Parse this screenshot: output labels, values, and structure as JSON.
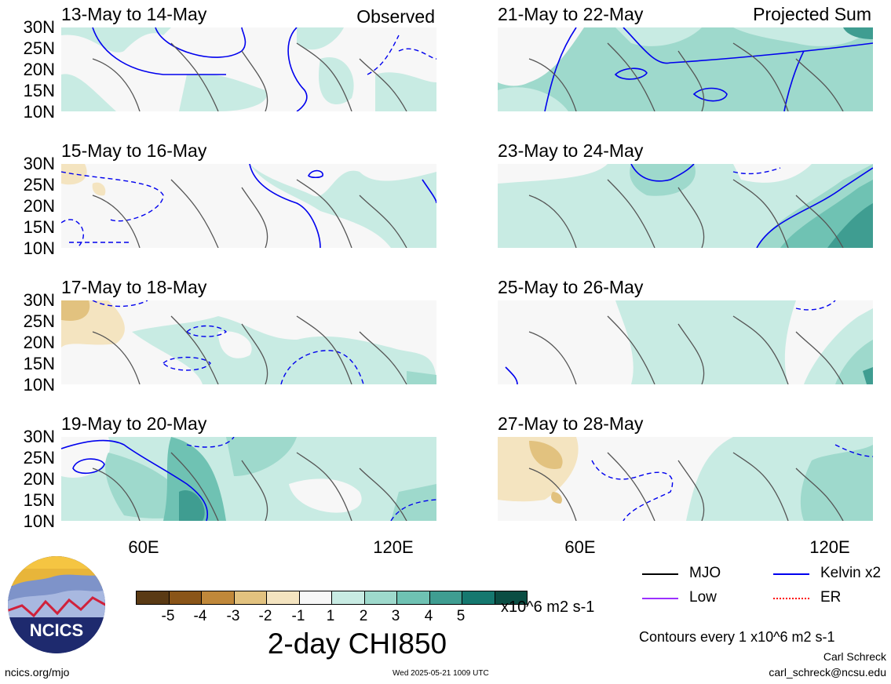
{
  "panels": [
    {
      "title": "13-May to 14-May",
      "tag": "Observed"
    },
    {
      "title": "15-May to 16-May",
      "tag": ""
    },
    {
      "title": "17-May to 18-May",
      "tag": ""
    },
    {
      "title": "19-May to 20-May",
      "tag": ""
    },
    {
      "title": "21-May to 22-May",
      "tag": "Projected Sum"
    },
    {
      "title": "23-May to 24-May",
      "tag": ""
    },
    {
      "title": "25-May to 26-May",
      "tag": ""
    },
    {
      "title": "27-May to 28-May",
      "tag": ""
    }
  ],
  "lat_labels": [
    "30N",
    "25N",
    "20N",
    "15N",
    "10N"
  ],
  "lon_labels": [
    "60E",
    "120E"
  ],
  "colorbar": {
    "colors": [
      "#5a3a14",
      "#8a5518",
      "#c0883a",
      "#e2c27f",
      "#f4e4c0",
      "#f7f7f7",
      "#c8ebe3",
      "#9ed9cc",
      "#6fc2b3",
      "#3f9d91",
      "#15786f",
      "#0b4d43"
    ],
    "labels": [
      "-5",
      "-4",
      "-3",
      "-2",
      "-1",
      "1",
      "2",
      "3",
      "4",
      "5"
    ],
    "units": "x10^6 m2 s-1",
    "title": "2-day CHI850"
  },
  "legend": [
    {
      "label": "MJO",
      "color": "#000000"
    },
    {
      "label": "Kelvin x2",
      "color": "#0000ee"
    },
    {
      "label": "Low",
      "color": "#9b30ff"
    },
    {
      "label": "ER",
      "color": "#ff0000"
    }
  ],
  "contour_note": "Contours every 1 x10^6 m2 s-1",
  "author": "Carl Schreck",
  "email": "carl_schreck@ncsu.edu",
  "site": "ncics.org/mjo",
  "timestamp": "Wed 2025-05-21 1009 UTC",
  "logo_text": "NCICS"
}
